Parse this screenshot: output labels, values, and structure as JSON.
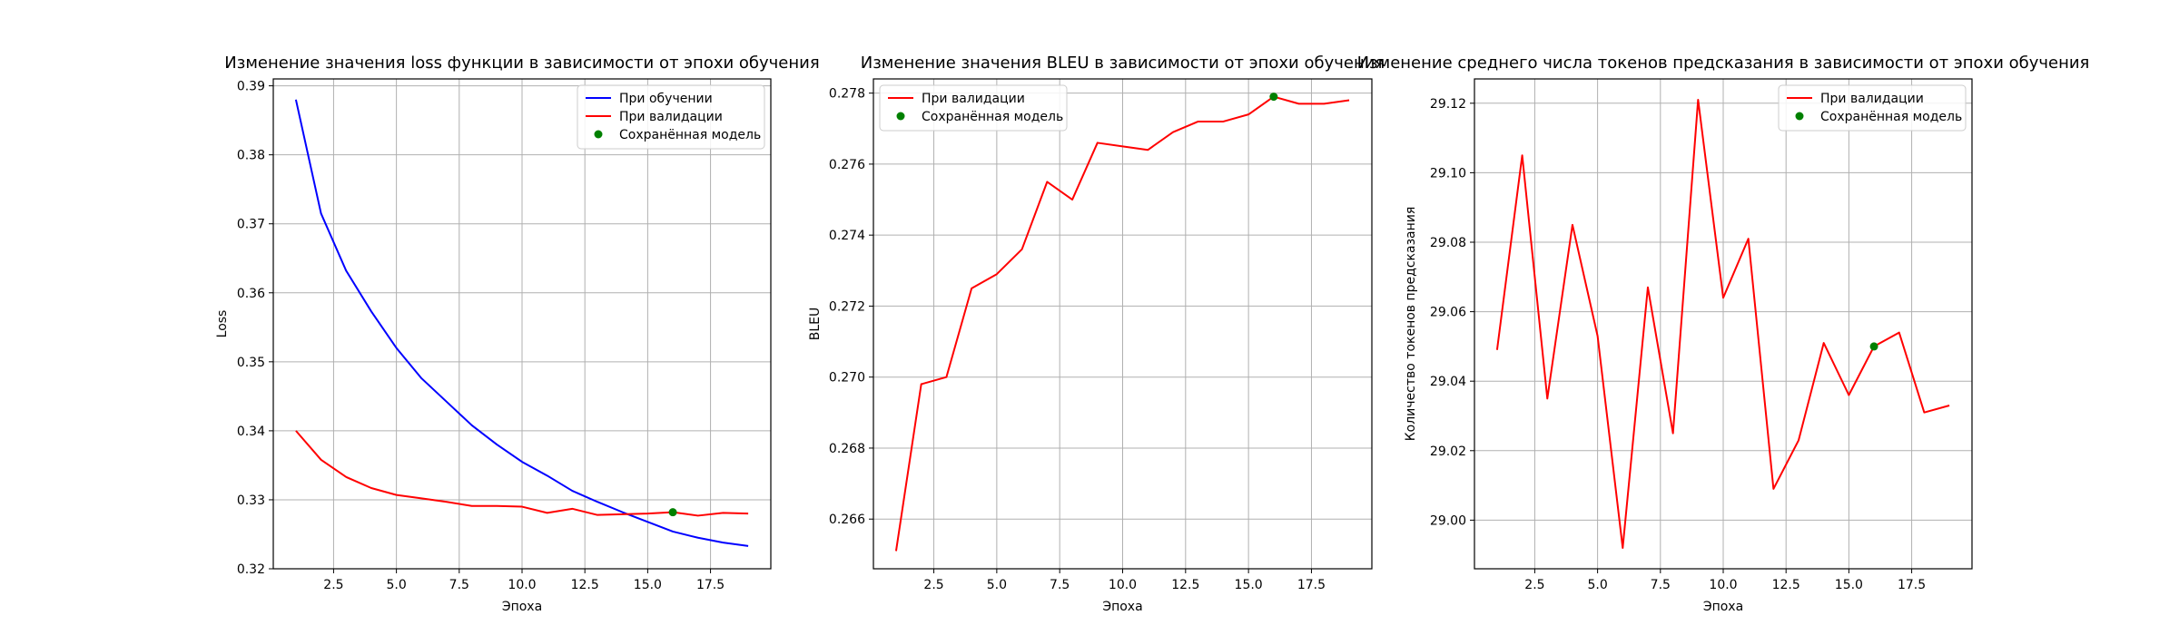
{
  "chart_data": [
    {
      "type": "line",
      "title": "Изменение значения loss функции в зависимости от эпохи обучения",
      "xlabel": "Эпоха",
      "ylabel": "Loss",
      "xlim": [
        0.1,
        19.9
      ],
      "ylim": [
        0.32,
        0.391
      ],
      "xticks": [
        2.5,
        5.0,
        7.5,
        10.0,
        12.5,
        15.0,
        17.5
      ],
      "xtick_labels": [
        "2.5",
        "5.0",
        "7.5",
        "10.0",
        "12.5",
        "15.0",
        "17.5"
      ],
      "yticks": [
        0.32,
        0.33,
        0.34,
        0.35,
        0.36,
        0.37,
        0.38,
        0.39
      ],
      "ytick_labels": [
        "0.32",
        "0.33",
        "0.34",
        "0.35",
        "0.36",
        "0.37",
        "0.38",
        "0.39"
      ],
      "grid": true,
      "legend_position": "upper right",
      "x": [
        1,
        2,
        3,
        4,
        5,
        6,
        7,
        8,
        9,
        10,
        11,
        12,
        13,
        14,
        15,
        16,
        17,
        18,
        19
      ],
      "series": [
        {
          "name": "При обучении",
          "color": "#0000ff",
          "values": [
            0.388,
            0.3715,
            0.3632,
            0.3573,
            0.352,
            0.3476,
            0.3442,
            0.3408,
            0.338,
            0.3355,
            0.3335,
            0.3313,
            0.3297,
            0.3282,
            0.3268,
            0.3254,
            0.3245,
            0.3238,
            0.3233
          ]
        },
        {
          "name": "При валидации",
          "color": "#ff0000",
          "values": [
            0.34,
            0.3358,
            0.3333,
            0.3317,
            0.3307,
            0.3302,
            0.3297,
            0.3291,
            0.3291,
            0.329,
            0.3281,
            0.3287,
            0.3278,
            0.3279,
            0.328,
            0.3282,
            0.3277,
            0.3281,
            0.328
          ]
        }
      ],
      "marker": {
        "name": "Сохранённая модель",
        "color": "#008000",
        "x": 16,
        "y": 0.3282
      }
    },
    {
      "type": "line",
      "title": "Изменение значения BLEU в зависимости от эпохи обучения",
      "xlabel": "Эпоха",
      "ylabel": "BLEU",
      "xlim": [
        0.1,
        19.9
      ],
      "ylim": [
        0.2646,
        0.2784
      ],
      "xticks": [
        2.5,
        5.0,
        7.5,
        10.0,
        12.5,
        15.0,
        17.5
      ],
      "xtick_labels": [
        "2.5",
        "5.0",
        "7.5",
        "10.0",
        "12.5",
        "15.0",
        "17.5"
      ],
      "yticks": [
        0.266,
        0.268,
        0.27,
        0.272,
        0.274,
        0.276,
        0.278
      ],
      "ytick_labels": [
        "0.266",
        "0.268",
        "0.270",
        "0.272",
        "0.274",
        "0.276",
        "0.278"
      ],
      "grid": true,
      "legend_position": "upper left",
      "x": [
        1,
        2,
        3,
        4,
        5,
        6,
        7,
        8,
        9,
        10,
        11,
        12,
        13,
        14,
        15,
        16,
        17,
        18,
        19
      ],
      "series": [
        {
          "name": "При валидации",
          "color": "#ff0000",
          "values": [
            0.2651,
            0.2698,
            0.27,
            0.2725,
            0.2729,
            0.2736,
            0.2755,
            0.275,
            0.2766,
            0.2765,
            0.2764,
            0.2769,
            0.2772,
            0.2772,
            0.2774,
            0.2779,
            0.2777,
            0.2777,
            0.2778
          ]
        }
      ],
      "marker": {
        "name": "Сохранённая модель",
        "color": "#008000",
        "x": 16,
        "y": 0.2779
      }
    },
    {
      "type": "line",
      "title": "Изменение среднего числа токенов предсказания в зависимости от эпохи обучения",
      "xlabel": "Эпоха",
      "ylabel": "Количество токенов предсказания",
      "xlim": [
        0.1,
        19.9
      ],
      "ylim": [
        28.986,
        29.127
      ],
      "xticks": [
        2.5,
        5.0,
        7.5,
        10.0,
        12.5,
        15.0,
        17.5
      ],
      "xtick_labels": [
        "2.5",
        "5.0",
        "7.5",
        "10.0",
        "12.5",
        "15.0",
        "17.5"
      ],
      "yticks": [
        29.0,
        29.02,
        29.04,
        29.06,
        29.08,
        29.1,
        29.12
      ],
      "ytick_labels": [
        "29.00",
        "29.02",
        "29.04",
        "29.06",
        "29.08",
        "29.10",
        "29.12"
      ],
      "grid": true,
      "legend_position": "upper right",
      "x": [
        1,
        2,
        3,
        4,
        5,
        6,
        7,
        8,
        9,
        10,
        11,
        12,
        13,
        14,
        15,
        16,
        17,
        18,
        19
      ],
      "series": [
        {
          "name": "При валидации",
          "color": "#ff0000",
          "values": [
            29.049,
            29.105,
            29.035,
            29.085,
            29.053,
            28.992,
            29.067,
            29.025,
            29.121,
            29.064,
            29.081,
            29.009,
            29.023,
            29.051,
            29.036,
            29.05,
            29.054,
            29.031,
            29.033
          ]
        }
      ],
      "marker": {
        "name": "Сохранённая модель",
        "color": "#008000",
        "x": 16,
        "y": 29.05
      }
    }
  ]
}
